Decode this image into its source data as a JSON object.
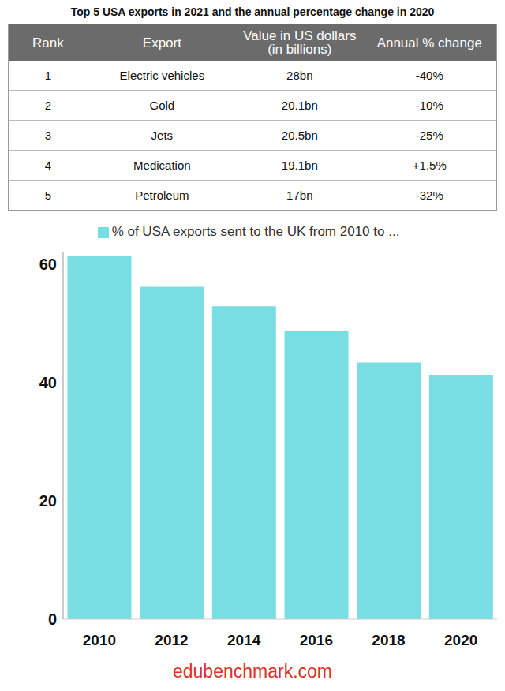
{
  "table": {
    "title": "Top 5 USA exports in 2021 and the annual percentage change in 2020",
    "columns": [
      "Rank",
      "Export",
      "Value in US dollars (in billions)",
      "Annual % change"
    ],
    "rows": [
      [
        "1",
        "Electric vehicles",
        "28bn",
        "-40%"
      ],
      [
        "2",
        "Gold",
        "20.1bn",
        "-10%"
      ],
      [
        "3",
        "Jets",
        "20.5bn",
        "-25%"
      ],
      [
        "4",
        "Medication",
        "19.1bn",
        "+1.5%"
      ],
      [
        "5",
        "Petroleum",
        "17bn",
        "-32%"
      ]
    ]
  },
  "chart_data": {
    "type": "bar",
    "categories": [
      "2010",
      "2012",
      "2014",
      "2016",
      "2018",
      "2020"
    ],
    "series": [
      {
        "name": "% of USA exports sent to the UK from 2010 to ...",
        "color": "#79dde4",
        "values": [
          61.4,
          56.2,
          52.9,
          48.7,
          43.4,
          41.2
        ]
      }
    ],
    "ylim": [
      0,
      62
    ],
    "yticks": [
      0,
      20,
      40,
      60
    ],
    "grid": false,
    "legend": "top"
  },
  "footer": "edubenchmark.com"
}
